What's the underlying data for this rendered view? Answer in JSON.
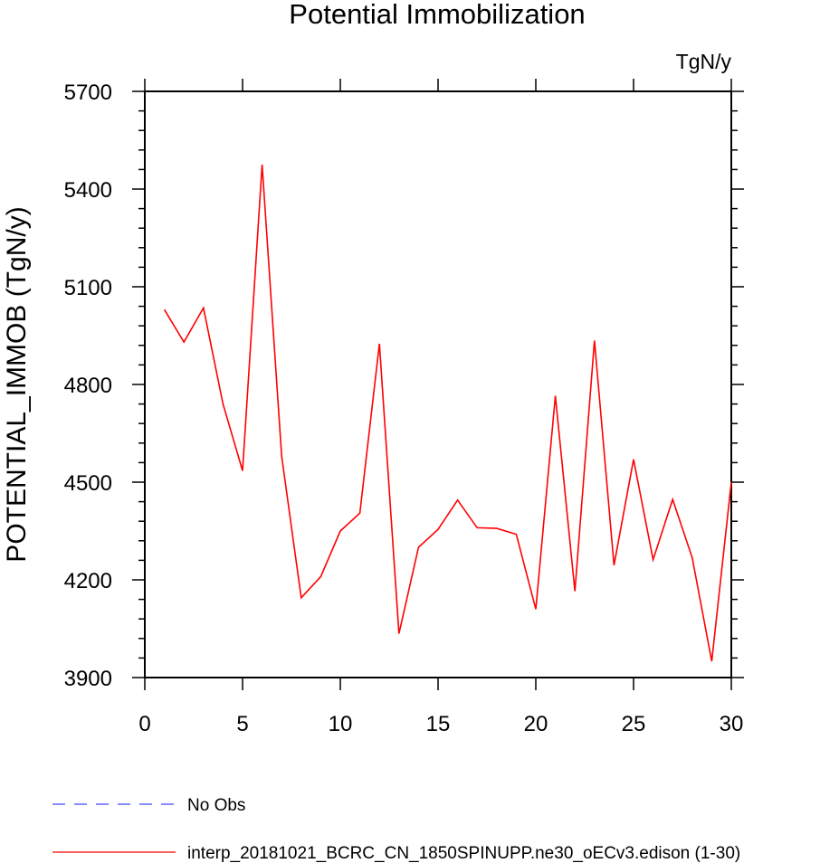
{
  "chart_data": {
    "type": "line",
    "title": "Potential Immobilization",
    "units_label": "TgN/y",
    "ylabel": "POTENTIAL_IMMOB  (TgN/y)",
    "xlabel": "",
    "xlim": [
      0,
      30
    ],
    "ylim": [
      3900,
      5700
    ],
    "x_ticks": [
      0,
      5,
      10,
      15,
      20,
      25,
      30
    ],
    "y_ticks": [
      3900,
      4200,
      4500,
      4800,
      5100,
      5400,
      5700
    ],
    "grid": false,
    "legend_position": "bottom-left",
    "series": [
      {
        "name": "interp_20181021_BCRC_CN_1850SPINUPP.ne30_oECv3.edison (1-30)",
        "color": "#ff0000",
        "style": "solid",
        "x": [
          1,
          2,
          3,
          4,
          5,
          6,
          7,
          8,
          9,
          10,
          11,
          12,
          13,
          14,
          15,
          16,
          17,
          18,
          19,
          20,
          21,
          22,
          23,
          24,
          25,
          26,
          27,
          28,
          29,
          30
        ],
        "values": [
          5030,
          4930,
          5035,
          4740,
          4535,
          5475,
          4580,
          4145,
          4210,
          4350,
          4405,
          4925,
          4035,
          4300,
          4355,
          4445,
          4360,
          4358,
          4340,
          4110,
          4765,
          4165,
          4935,
          4245,
          4570,
          4262,
          4447,
          4268,
          3950,
          4500
        ]
      },
      {
        "name": "No Obs",
        "color": "#4444ff",
        "style": "dashed",
        "x": [],
        "values": []
      }
    ]
  }
}
